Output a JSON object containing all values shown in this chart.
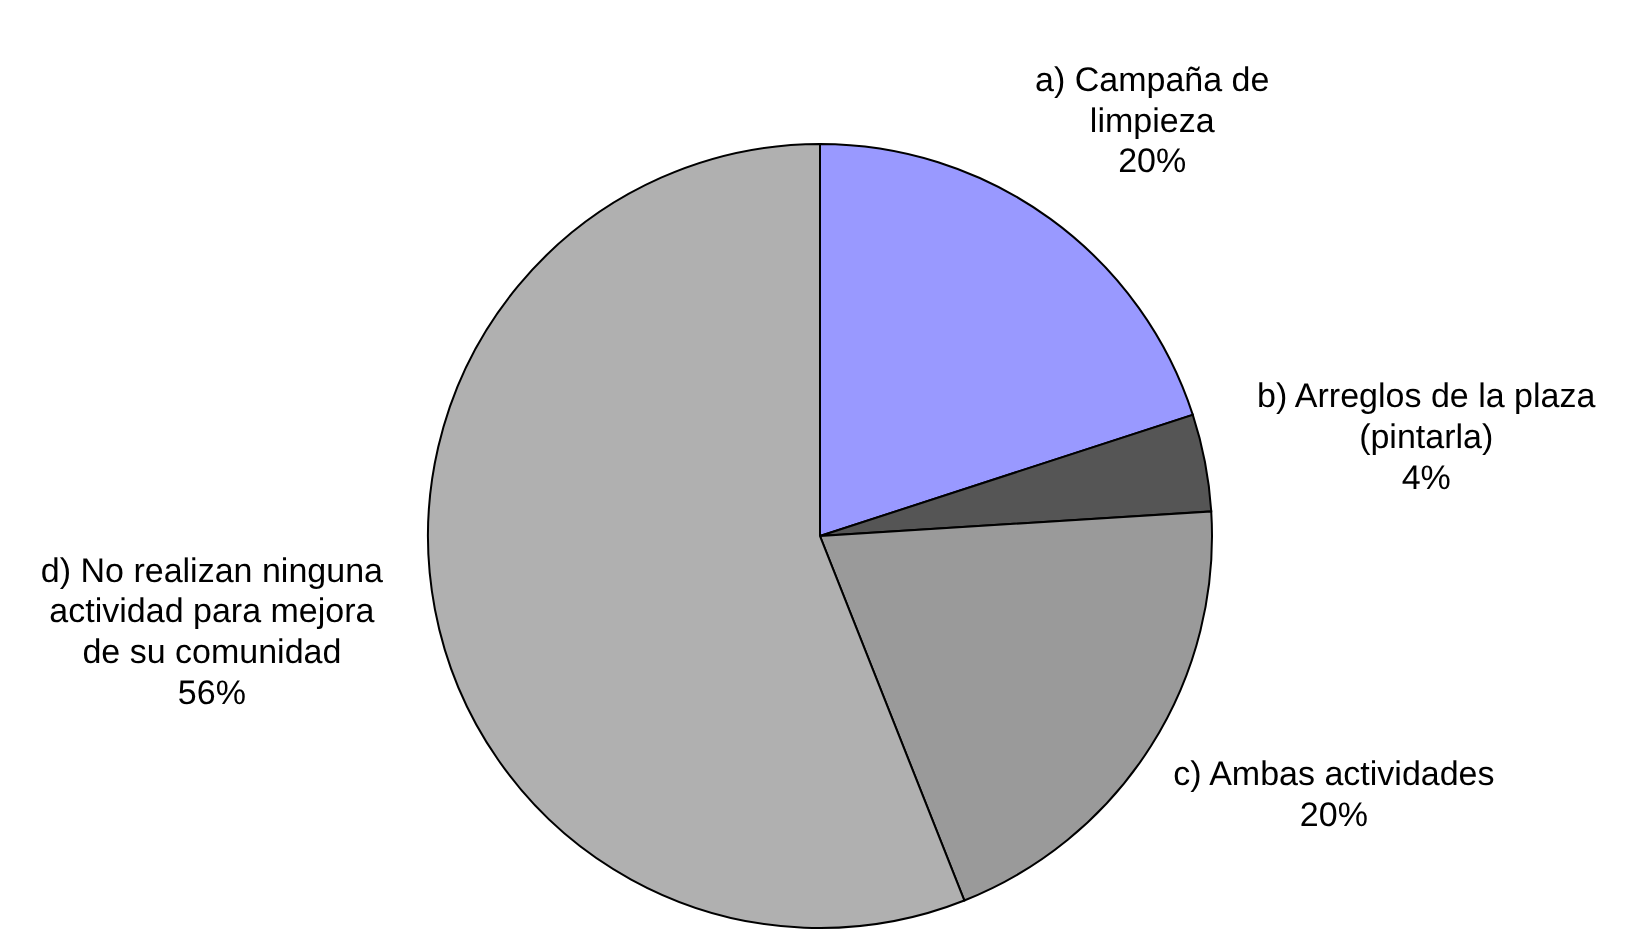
{
  "chart_data": {
    "type": "pie",
    "categories": [
      "a) Campaña de limpieza",
      "b) Arreglos de la plaza (pintarla)",
      "c) Ambas actividades",
      "d) No realizan ninguna actividad para mejora de su comunidad"
    ],
    "values": [
      20,
      4,
      20,
      56
    ],
    "colors": [
      "#9999ff",
      "#555555",
      "#9a9a9a",
      "#b0b0b0"
    ],
    "value_labels": [
      "20%",
      "4%",
      "20%",
      "56%"
    ],
    "legend": false
  }
}
